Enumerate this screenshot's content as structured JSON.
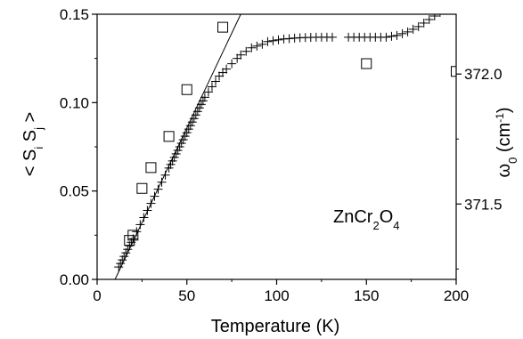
{
  "chart_data": {
    "type": "scatter",
    "title": "",
    "xlabel": "Temperature (K)",
    "ylabel_left": {
      "base": "< S",
      "sub1": "i",
      "mid": " S",
      "sub2": "j",
      "end": " >"
    },
    "ylabel_right": {
      "base": "ω",
      "sub": "0",
      "unit_open": " (cm",
      "sup": "-1",
      "unit_close": ")"
    },
    "annotation": {
      "p1": "ZnCr",
      "s1": "2",
      "p2": "O",
      "s2": "4"
    },
    "x_axis": {
      "range": [
        0,
        200
      ],
      "ticks": [
        "0",
        "50",
        "100",
        "150",
        "200"
      ]
    },
    "y_left_axis": {
      "range": [
        0,
        0.15
      ],
      "ticks": [
        "0.00",
        "0.05",
        "0.10",
        "0.15"
      ]
    },
    "y_right_axis": {
      "ticks": [
        "371.5",
        "372.0"
      ],
      "tick_values": [
        371.5,
        372.0
      ],
      "range": [
        371.21,
        372.23
      ]
    },
    "series": [
      {
        "marker": "plus",
        "axis": "left",
        "points": [
          [
            12,
            0.007
          ],
          [
            13,
            0.009
          ],
          [
            14,
            0.011
          ],
          [
            15,
            0.013
          ],
          [
            16,
            0.015
          ],
          [
            17,
            0.017
          ],
          [
            18,
            0.019
          ],
          [
            19,
            0.021
          ],
          [
            20,
            0.023
          ],
          [
            22,
            0.027
          ],
          [
            24,
            0.031
          ],
          [
            26,
            0.035
          ],
          [
            28,
            0.039
          ],
          [
            30,
            0.043
          ],
          [
            32,
            0.047
          ],
          [
            34,
            0.051
          ],
          [
            36,
            0.055
          ],
          [
            38,
            0.059
          ],
          [
            40,
            0.063
          ],
          [
            41,
            0.065
          ],
          [
            42,
            0.067
          ],
          [
            43,
            0.069
          ],
          [
            44,
            0.071
          ],
          [
            45,
            0.073
          ],
          [
            46,
            0.075
          ],
          [
            47,
            0.077
          ],
          [
            48,
            0.079
          ],
          [
            49,
            0.081
          ],
          [
            50,
            0.083
          ],
          [
            51,
            0.085
          ],
          [
            52,
            0.087
          ],
          [
            53,
            0.089
          ],
          [
            54,
            0.091
          ],
          [
            55,
            0.093
          ],
          [
            56,
            0.095
          ],
          [
            57,
            0.097
          ],
          [
            58,
            0.099
          ],
          [
            59,
            0.101
          ],
          [
            60,
            0.103
          ],
          [
            62,
            0.106
          ],
          [
            64,
            0.109
          ],
          [
            66,
            0.112
          ],
          [
            68,
            0.115
          ],
          [
            70,
            0.117
          ],
          [
            72,
            0.119
          ],
          [
            75,
            0.122
          ],
          [
            78,
            0.125
          ],
          [
            80,
            0.127
          ],
          [
            83,
            0.129
          ],
          [
            86,
            0.131
          ],
          [
            89,
            0.132
          ],
          [
            92,
            0.133
          ],
          [
            95,
            0.1345
          ],
          [
            98,
            0.135
          ],
          [
            101,
            0.1355
          ],
          [
            104,
            0.136
          ],
          [
            107,
            0.1362
          ],
          [
            110,
            0.1365
          ],
          [
            113,
            0.1367
          ],
          [
            116,
            0.1368
          ],
          [
            119,
            0.1369
          ],
          [
            122,
            0.137
          ],
          [
            125,
            0.137
          ],
          [
            128,
            0.137
          ],
          [
            131,
            0.137
          ],
          [
            140,
            0.137
          ],
          [
            143,
            0.137
          ],
          [
            146,
            0.137
          ],
          [
            149,
            0.137
          ],
          [
            152,
            0.137
          ],
          [
            155,
            0.137
          ],
          [
            158,
            0.137
          ],
          [
            161,
            0.137
          ],
          [
            164,
            0.1375
          ],
          [
            167,
            0.138
          ],
          [
            170,
            0.139
          ],
          [
            173,
            0.14
          ],
          [
            176,
            0.1415
          ],
          [
            179,
            0.143
          ],
          [
            182,
            0.145
          ],
          [
            185,
            0.147
          ],
          [
            188,
            0.149
          ],
          [
            191,
            0.151
          ]
        ]
      },
      {
        "marker": "square",
        "axis": "right",
        "points": [
          [
            18,
            371.36
          ],
          [
            20,
            371.38
          ],
          [
            25,
            371.56
          ],
          [
            30,
            371.64
          ],
          [
            40,
            371.76
          ],
          [
            50,
            371.94
          ],
          [
            70,
            372.18
          ],
          [
            150,
            372.04
          ],
          [
            200,
            372.01
          ]
        ]
      }
    ],
    "fit_line": {
      "x": [
        10,
        80
      ],
      "y": [
        0.0,
        0.15
      ],
      "axis": "left"
    },
    "grid": false
  }
}
